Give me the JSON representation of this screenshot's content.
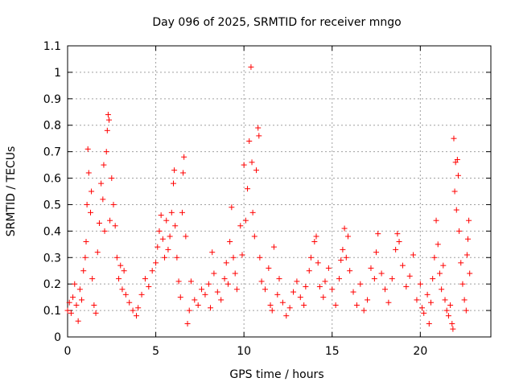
{
  "chart_data": {
    "type": "scatter",
    "title": "Day 096 of 2025, SRMTID for receiver mngo",
    "xlabel": "GPS time / hours",
    "ylabel": "SRMTID / TECUs",
    "xlim": [
      0,
      24
    ],
    "ylim": [
      0,
      1.1
    ],
    "xticks": [
      0,
      5,
      10,
      15,
      20
    ],
    "yticks": [
      0,
      0.1,
      0.2,
      0.3,
      0.4,
      0.5,
      0.6,
      0.7,
      0.8,
      0.9,
      1,
      1.1
    ],
    "grid": true,
    "marker": "+",
    "color": "#ff0000",
    "series": [
      {
        "name": "SRMTID",
        "points": [
          [
            0.0,
            0.1
          ],
          [
            0.1,
            0.13
          ],
          [
            0.2,
            0.09
          ],
          [
            0.3,
            0.15
          ],
          [
            0.4,
            0.2
          ],
          [
            0.5,
            0.12
          ],
          [
            0.6,
            0.06
          ],
          [
            0.7,
            0.18
          ],
          [
            0.8,
            0.14
          ],
          [
            0.9,
            0.25
          ],
          [
            1.0,
            0.3
          ],
          [
            1.05,
            0.36
          ],
          [
            1.1,
            0.5
          ],
          [
            1.15,
            0.71
          ],
          [
            1.2,
            0.62
          ],
          [
            1.3,
            0.47
          ],
          [
            1.35,
            0.55
          ],
          [
            1.4,
            0.22
          ],
          [
            1.5,
            0.12
          ],
          [
            1.6,
            0.09
          ],
          [
            1.7,
            0.32
          ],
          [
            1.8,
            0.43
          ],
          [
            1.9,
            0.58
          ],
          [
            2.0,
            0.52
          ],
          [
            2.05,
            0.65
          ],
          [
            2.1,
            0.4
          ],
          [
            2.2,
            0.7
          ],
          [
            2.25,
            0.78
          ],
          [
            2.3,
            0.84
          ],
          [
            2.35,
            0.82
          ],
          [
            2.4,
            0.44
          ],
          [
            2.5,
            0.6
          ],
          [
            2.6,
            0.5
          ],
          [
            2.7,
            0.42
          ],
          [
            2.8,
            0.3
          ],
          [
            2.9,
            0.22
          ],
          [
            3.0,
            0.27
          ],
          [
            3.1,
            0.18
          ],
          [
            3.2,
            0.25
          ],
          [
            3.3,
            0.16
          ],
          [
            3.5,
            0.13
          ],
          [
            3.7,
            0.1
          ],
          [
            3.9,
            0.08
          ],
          [
            4.0,
            0.11
          ],
          [
            4.2,
            0.16
          ],
          [
            4.4,
            0.22
          ],
          [
            4.6,
            0.19
          ],
          [
            4.8,
            0.25
          ],
          [
            5.0,
            0.28
          ],
          [
            5.1,
            0.34
          ],
          [
            5.2,
            0.4
          ],
          [
            5.3,
            0.46
          ],
          [
            5.4,
            0.37
          ],
          [
            5.5,
            0.3
          ],
          [
            5.6,
            0.44
          ],
          [
            5.7,
            0.33
          ],
          [
            5.8,
            0.38
          ],
          [
            5.9,
            0.47
          ],
          [
            6.0,
            0.58
          ],
          [
            6.05,
            0.63
          ],
          [
            6.1,
            0.42
          ],
          [
            6.2,
            0.3
          ],
          [
            6.3,
            0.21
          ],
          [
            6.4,
            0.15
          ],
          [
            6.5,
            0.47
          ],
          [
            6.55,
            0.62
          ],
          [
            6.6,
            0.68
          ],
          [
            6.7,
            0.38
          ],
          [
            6.8,
            0.05
          ],
          [
            6.9,
            0.1
          ],
          [
            7.0,
            0.21
          ],
          [
            7.2,
            0.14
          ],
          [
            7.4,
            0.12
          ],
          [
            7.6,
            0.18
          ],
          [
            7.8,
            0.16
          ],
          [
            8.0,
            0.2
          ],
          [
            8.1,
            0.11
          ],
          [
            8.2,
            0.32
          ],
          [
            8.3,
            0.24
          ],
          [
            8.5,
            0.17
          ],
          [
            8.7,
            0.14
          ],
          [
            8.9,
            0.22
          ],
          [
            9.0,
            0.28
          ],
          [
            9.1,
            0.2
          ],
          [
            9.2,
            0.36
          ],
          [
            9.3,
            0.49
          ],
          [
            9.4,
            0.3
          ],
          [
            9.5,
            0.24
          ],
          [
            9.6,
            0.18
          ],
          [
            9.8,
            0.42
          ],
          [
            9.9,
            0.31
          ],
          [
            10.0,
            0.65
          ],
          [
            10.1,
            0.44
          ],
          [
            10.2,
            0.56
          ],
          [
            10.3,
            0.74
          ],
          [
            10.4,
            1.02
          ],
          [
            10.45,
            0.66
          ],
          [
            10.5,
            0.47
          ],
          [
            10.6,
            0.38
          ],
          [
            10.7,
            0.63
          ],
          [
            10.8,
            0.79
          ],
          [
            10.85,
            0.76
          ],
          [
            10.9,
            0.3
          ],
          [
            11.0,
            0.21
          ],
          [
            11.2,
            0.18
          ],
          [
            11.4,
            0.26
          ],
          [
            11.5,
            0.12
          ],
          [
            11.6,
            0.1
          ],
          [
            11.7,
            0.34
          ],
          [
            11.9,
            0.16
          ],
          [
            12.0,
            0.22
          ],
          [
            12.2,
            0.13
          ],
          [
            12.4,
            0.08
          ],
          [
            12.6,
            0.11
          ],
          [
            12.8,
            0.17
          ],
          [
            13.0,
            0.21
          ],
          [
            13.2,
            0.15
          ],
          [
            13.4,
            0.12
          ],
          [
            13.5,
            0.19
          ],
          [
            13.7,
            0.25
          ],
          [
            13.8,
            0.3
          ],
          [
            14.0,
            0.36
          ],
          [
            14.1,
            0.38
          ],
          [
            14.2,
            0.28
          ],
          [
            14.3,
            0.19
          ],
          [
            14.5,
            0.15
          ],
          [
            14.6,
            0.21
          ],
          [
            14.8,
            0.26
          ],
          [
            15.0,
            0.18
          ],
          [
            15.2,
            0.12
          ],
          [
            15.4,
            0.22
          ],
          [
            15.5,
            0.29
          ],
          [
            15.6,
            0.33
          ],
          [
            15.7,
            0.41
          ],
          [
            15.8,
            0.3
          ],
          [
            15.9,
            0.38
          ],
          [
            16.0,
            0.25
          ],
          [
            16.2,
            0.17
          ],
          [
            16.4,
            0.12
          ],
          [
            16.6,
            0.2
          ],
          [
            16.8,
            0.1
          ],
          [
            17.0,
            0.14
          ],
          [
            17.2,
            0.26
          ],
          [
            17.4,
            0.22
          ],
          [
            17.5,
            0.32
          ],
          [
            17.6,
            0.39
          ],
          [
            17.8,
            0.24
          ],
          [
            18.0,
            0.18
          ],
          [
            18.2,
            0.13
          ],
          [
            18.4,
            0.22
          ],
          [
            18.6,
            0.33
          ],
          [
            18.7,
            0.39
          ],
          [
            18.8,
            0.36
          ],
          [
            19.0,
            0.27
          ],
          [
            19.2,
            0.19
          ],
          [
            19.4,
            0.23
          ],
          [
            19.6,
            0.31
          ],
          [
            19.8,
            0.14
          ],
          [
            20.0,
            0.2
          ],
          [
            20.1,
            0.11
          ],
          [
            20.2,
            0.09
          ],
          [
            20.4,
            0.16
          ],
          [
            20.5,
            0.05
          ],
          [
            20.6,
            0.13
          ],
          [
            20.7,
            0.22
          ],
          [
            20.8,
            0.3
          ],
          [
            20.9,
            0.44
          ],
          [
            21.0,
            0.35
          ],
          [
            21.1,
            0.24
          ],
          [
            21.2,
            0.18
          ],
          [
            21.3,
            0.27
          ],
          [
            21.4,
            0.14
          ],
          [
            21.5,
            0.1
          ],
          [
            21.6,
            0.08
          ],
          [
            21.7,
            0.12
          ],
          [
            21.8,
            0.05
          ],
          [
            21.85,
            0.03
          ],
          [
            21.9,
            0.75
          ],
          [
            21.95,
            0.55
          ],
          [
            22.0,
            0.66
          ],
          [
            22.05,
            0.48
          ],
          [
            22.1,
            0.67
          ],
          [
            22.15,
            0.61
          ],
          [
            22.2,
            0.4
          ],
          [
            22.3,
            0.28
          ],
          [
            22.4,
            0.2
          ],
          [
            22.5,
            0.14
          ],
          [
            22.6,
            0.1
          ],
          [
            22.65,
            0.31
          ],
          [
            22.7,
            0.37
          ],
          [
            22.75,
            0.44
          ],
          [
            22.8,
            0.24
          ]
        ]
      }
    ]
  }
}
